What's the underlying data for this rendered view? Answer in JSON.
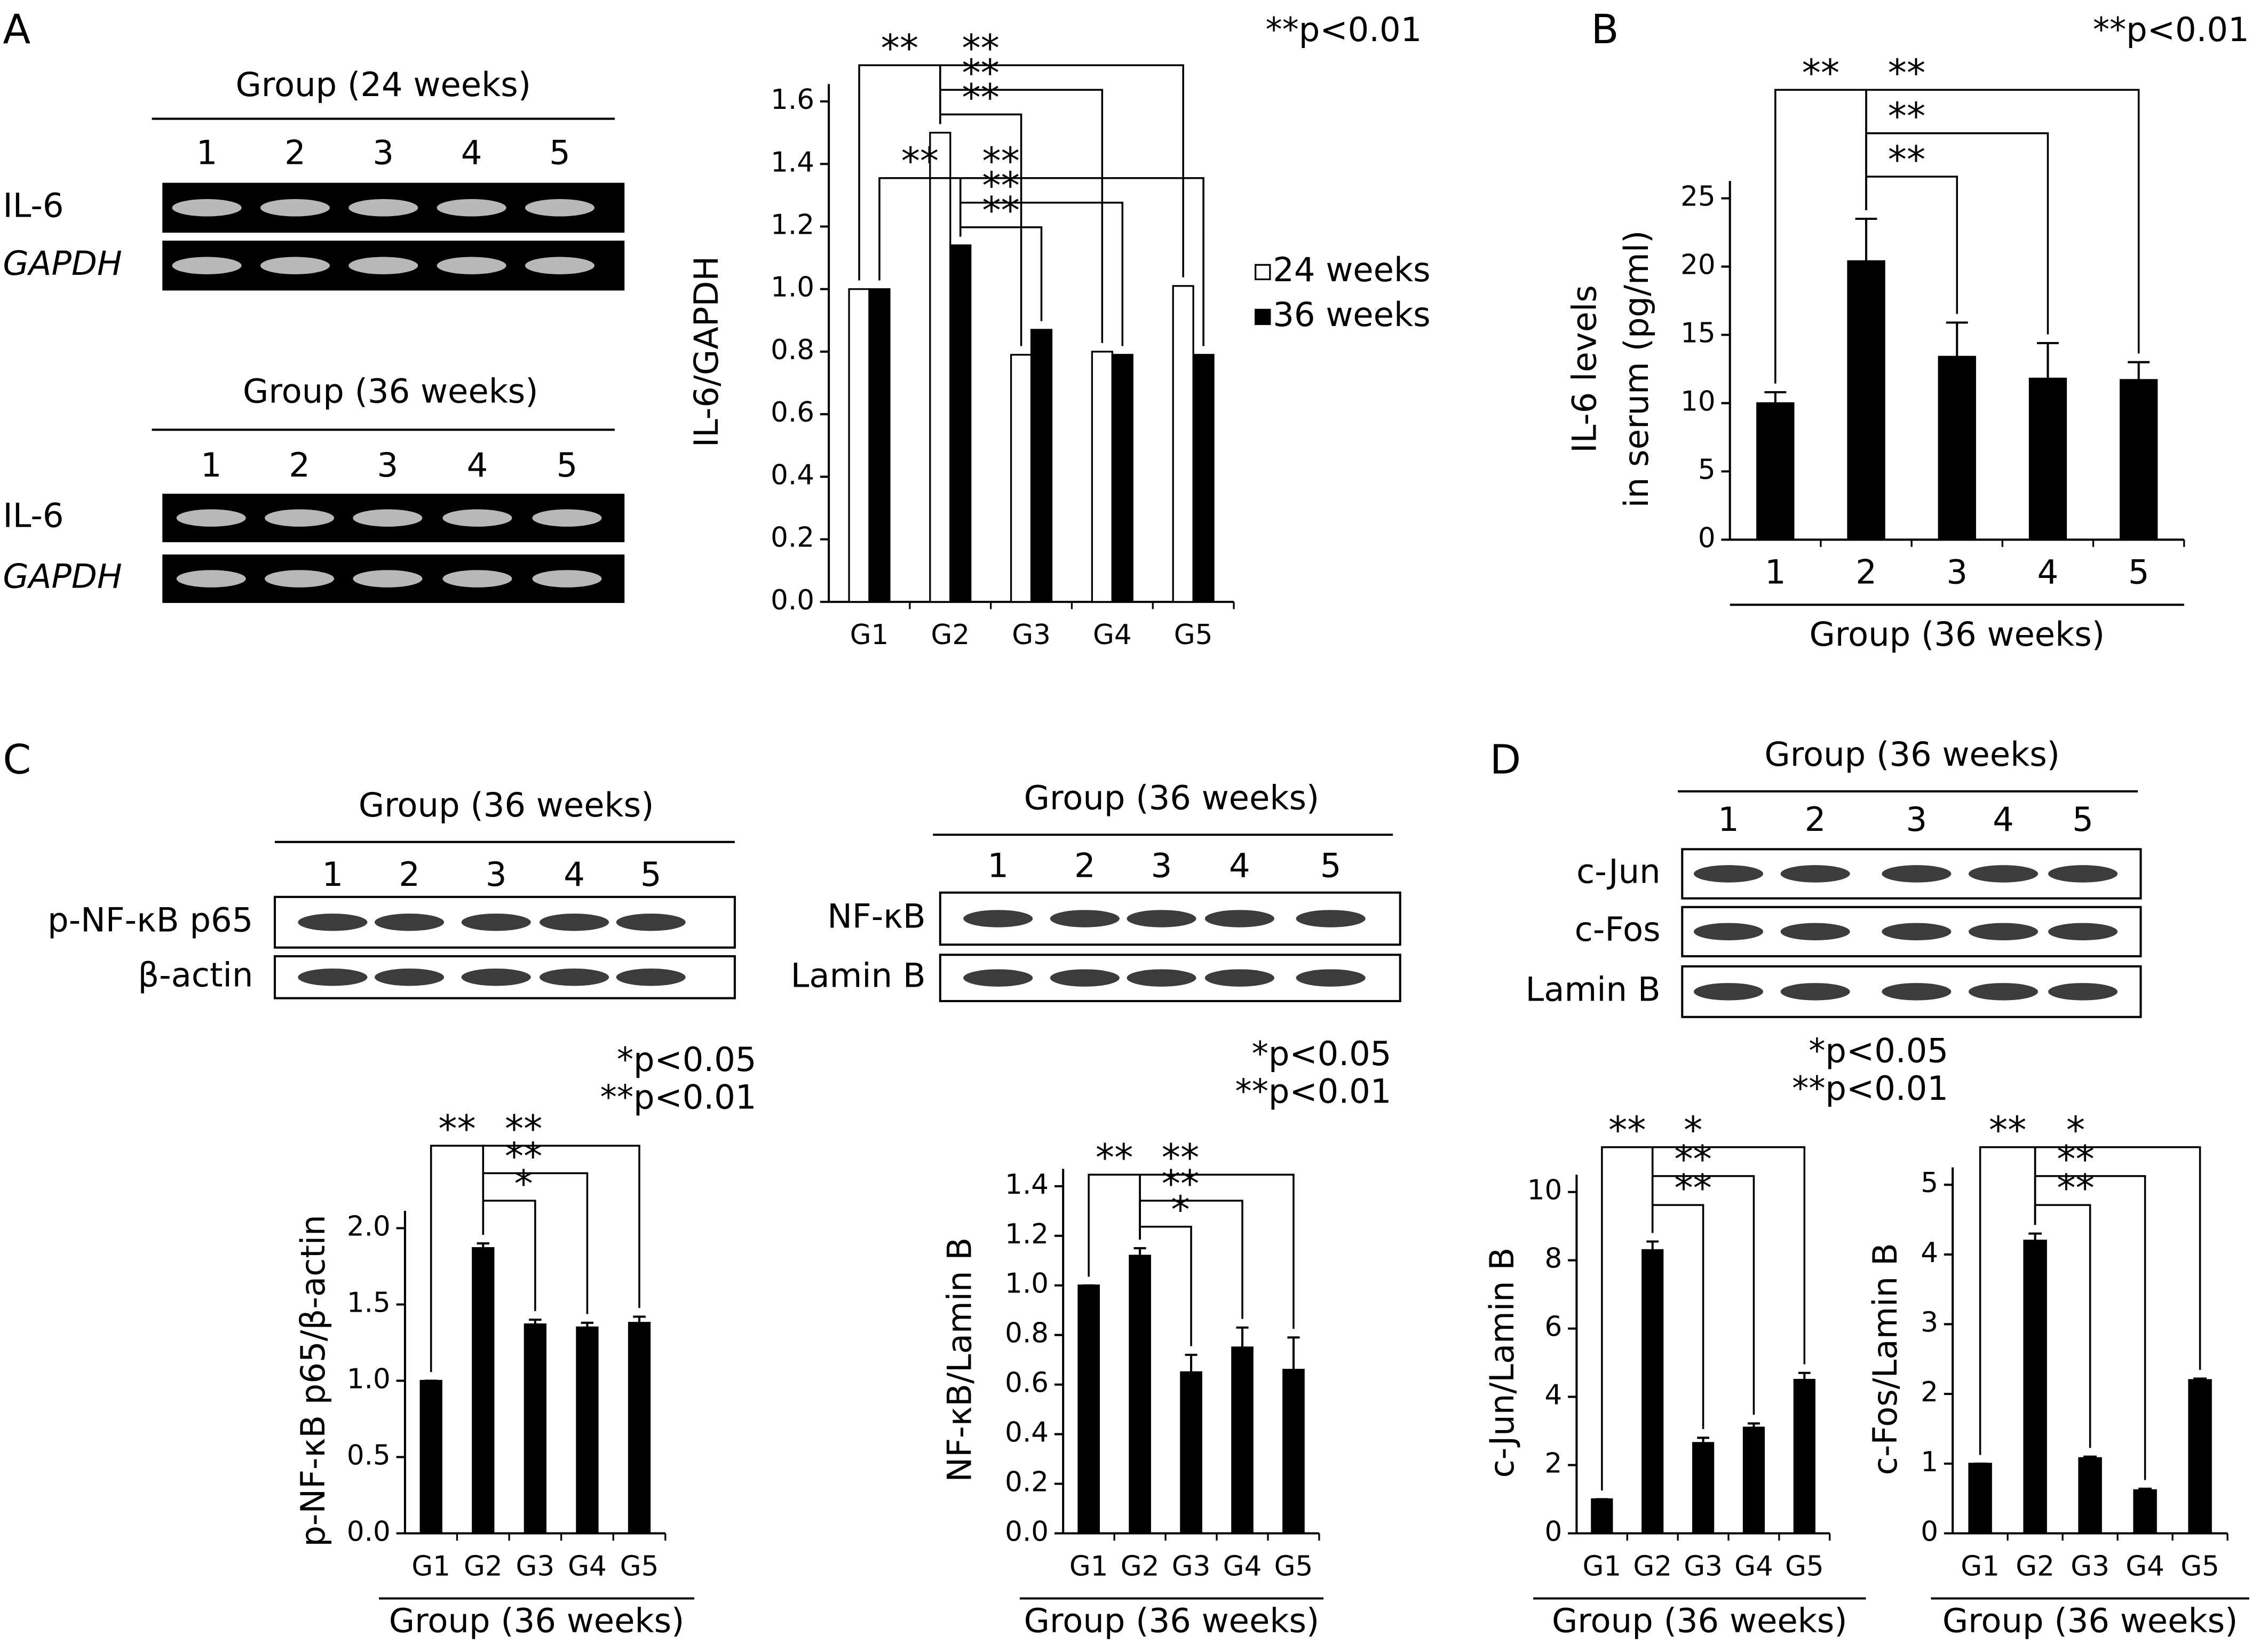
{
  "panels": [
    "A",
    "B",
    "C",
    "D"
  ],
  "blots": [
    {
      "header": "Group (24 weeks)",
      "lanes": [
        "1",
        "2",
        "3",
        "4",
        "5"
      ],
      "rows": [
        "IL-6",
        "GAPDH"
      ]
    },
    {
      "header": "Group (36 weeks)",
      "lanes": [
        "1",
        "2",
        "3",
        "4",
        "5"
      ],
      "rows": [
        "IL-6",
        "GAPDH"
      ]
    },
    {
      "header": "Group (36 weeks)",
      "lanes": [
        "1",
        "2",
        "3",
        "4",
        "5"
      ],
      "rows": [
        "p-NF-κB p65",
        "β-actin"
      ]
    },
    {
      "header": "Group (36 weeks)",
      "lanes": [
        "1",
        "2",
        "3",
        "4",
        "5"
      ],
      "rows": [
        "NF-κB",
        "Lamin B"
      ]
    },
    {
      "header": "Group (36 weeks)",
      "lanes": [
        "1",
        "2",
        "3",
        "4",
        "5"
      ],
      "rows": [
        "c-Jun",
        "c-Fos",
        "Lamin B"
      ]
    }
  ],
  "chart_data": [
    {
      "type": "bar",
      "ylabel": [
        "IL-6/GAPDH"
      ],
      "notes": [
        "**p<0.01"
      ],
      "categories": [
        "G1",
        "G2",
        "G3",
        "G4",
        "G5"
      ],
      "series": [
        {
          "name": "24 weeks",
          "color": "#ffffff",
          "values": [
            1.0,
            1.5,
            0.79,
            0.8,
            1.01
          ]
        },
        {
          "name": "36 weeks",
          "color": "#000000",
          "values": [
            1.0,
            1.14,
            0.87,
            0.79,
            0.79
          ]
        }
      ],
      "ylim": [
        0,
        1.6
      ],
      "yticks": [
        {
          "value": 0,
          "label": "0.0"
        },
        {
          "value": 0.2,
          "label": "0.2"
        },
        {
          "value": 0.4,
          "label": "0.4"
        },
        {
          "value": 0.6,
          "label": "0.6"
        },
        {
          "value": 0.8,
          "label": "0.8"
        },
        {
          "value": 1,
          "label": "1.0"
        },
        {
          "value": 1.2,
          "label": "1.2"
        },
        {
          "value": 1.4,
          "label": "1.4"
        },
        {
          "value": 1.6,
          "label": "1.6"
        }
      ],
      "legend": "right",
      "annotations": [
        {
          "text": "**",
          "between": [
            "G1",
            "G2"
          ],
          "series": "24 weeks"
        },
        {
          "text": "**",
          "between": [
            "G2",
            "G3"
          ],
          "series": "24 weeks"
        },
        {
          "text": "**",
          "between": [
            "G2",
            "G4"
          ],
          "series": "24 weeks"
        },
        {
          "text": "**",
          "between": [
            "G2",
            "G5"
          ],
          "series": "24 weeks"
        },
        {
          "text": "**",
          "between": [
            "G1",
            "G2"
          ],
          "series": "36 weeks"
        },
        {
          "text": "**",
          "between": [
            "G2",
            "G3"
          ],
          "series": "36 weeks"
        },
        {
          "text": "**",
          "between": [
            "G2",
            "G4"
          ],
          "series": "36 weeks"
        },
        {
          "text": "**",
          "between": [
            "G2",
            "G5"
          ],
          "series": "36 weeks"
        }
      ]
    },
    {
      "type": "bar",
      "ylabel": [
        "IL-6 levels",
        "in serum (pg/ml)"
      ],
      "xlabel": "Group (36 weeks)",
      "notes": [
        "**p<0.01"
      ],
      "categories": [
        "1",
        "2",
        "3",
        "4",
        "5"
      ],
      "series": [
        {
          "color": "#000000",
          "values": [
            10,
            20.4,
            13.4,
            11.8,
            11.7
          ],
          "errors": [
            0.8,
            3.1,
            2.5,
            2.6,
            1.3
          ]
        }
      ],
      "ylim": [
        0,
        25
      ],
      "yticks": [
        0,
        5,
        10,
        15,
        20,
        25
      ],
      "annotations": [
        {
          "text": "**",
          "between": [
            "1",
            "2"
          ]
        },
        {
          "text": "**",
          "between": [
            "2",
            "3"
          ]
        },
        {
          "text": "**",
          "between": [
            "2",
            "4"
          ]
        },
        {
          "text": "**",
          "between": [
            "2",
            "5"
          ]
        }
      ]
    },
    {
      "type": "bar",
      "ylabel": [
        "p-NF-κB p65/β-actin"
      ],
      "xlabel": "Group (36 weeks)",
      "notes": [
        "*p<0.05",
        "**p<0.01"
      ],
      "categories": [
        "G1",
        "G2",
        "G3",
        "G4",
        "G5"
      ],
      "series": [
        {
          "color": "#000000",
          "values": [
            1.0,
            1.87,
            1.37,
            1.35,
            1.38
          ],
          "errors": [
            0,
            0.03,
            0.03,
            0.03,
            0.04
          ]
        }
      ],
      "ylim": [
        0,
        2
      ],
      "yticks": [
        {
          "value": 0,
          "label": "0.0"
        },
        {
          "value": 0.5,
          "label": "0.5"
        },
        {
          "value": 1,
          "label": "1.0"
        },
        {
          "value": 1.5,
          "label": "1.5"
        },
        {
          "value": 2,
          "label": "2.0"
        }
      ],
      "annotations": [
        {
          "text": "**",
          "between": [
            "G1",
            "G2"
          ]
        },
        {
          "text": "*",
          "between": [
            "G2",
            "G3"
          ]
        },
        {
          "text": "**",
          "between": [
            "G2",
            "G4"
          ]
        },
        {
          "text": "**",
          "between": [
            "G2",
            "G5"
          ]
        }
      ]
    },
    {
      "type": "bar",
      "ylabel": [
        "NF-κB/Lamin B"
      ],
      "xlabel": "Group (36 weeks)",
      "notes": [
        "*p<0.05",
        "**p<0.01"
      ],
      "categories": [
        "G1",
        "G2",
        "G3",
        "G4",
        "G5"
      ],
      "series": [
        {
          "color": "#000000",
          "values": [
            1.0,
            1.12,
            0.65,
            0.75,
            0.66
          ],
          "errors": [
            0,
            0.03,
            0.07,
            0.08,
            0.13
          ]
        }
      ],
      "ylim": [
        0,
        1.4
      ],
      "yticks": [
        {
          "value": 0,
          "label": "0.0"
        },
        {
          "value": 0.2,
          "label": "0.2"
        },
        {
          "value": 0.4,
          "label": "0.4"
        },
        {
          "value": 0.6,
          "label": "0.6"
        },
        {
          "value": 0.8,
          "label": "0.8"
        },
        {
          "value": 1,
          "label": "1.0"
        },
        {
          "value": 1.2,
          "label": "1.2"
        },
        {
          "value": 1.4,
          "label": "1.4"
        }
      ],
      "annotations": [
        {
          "text": "**",
          "between": [
            "G1",
            "G2"
          ]
        },
        {
          "text": "*",
          "between": [
            "G2",
            "G3"
          ]
        },
        {
          "text": "**",
          "between": [
            "G2",
            "G4"
          ]
        },
        {
          "text": "**",
          "between": [
            "G2",
            "G5"
          ]
        }
      ]
    },
    {
      "type": "bar",
      "ylabel": [
        "c-Jun/Lamin B"
      ],
      "xlabel": "Group (36 weeks)",
      "notes": [
        "*p<0.05",
        "**p<0.01"
      ],
      "categories": [
        "G1",
        "G2",
        "G3",
        "G4",
        "G5"
      ],
      "series": [
        {
          "color": "#000000",
          "values": [
            1.0,
            8.3,
            2.65,
            3.1,
            4.5
          ],
          "errors": [
            0,
            0.25,
            0.15,
            0.12,
            0.2
          ]
        }
      ],
      "ylim": [
        0,
        10
      ],
      "yticks": [
        0,
        2,
        4,
        6,
        8,
        10
      ],
      "annotations": [
        {
          "text": "**",
          "between": [
            "G1",
            "G2"
          ]
        },
        {
          "text": "**",
          "between": [
            "G2",
            "G3"
          ]
        },
        {
          "text": "**",
          "between": [
            "G2",
            "G4"
          ]
        },
        {
          "text": "*",
          "between": [
            "G2",
            "G5"
          ]
        }
      ]
    },
    {
      "type": "bar",
      "ylabel": [
        "c-Fos/Lamin B"
      ],
      "xlabel": "Group (36 weeks)",
      "categories": [
        "G1",
        "G2",
        "G3",
        "G4",
        "G5"
      ],
      "series": [
        {
          "color": "#000000",
          "values": [
            1.0,
            4.2,
            1.08,
            0.62,
            2.2
          ],
          "errors": [
            0,
            0.1,
            0.02,
            0.02,
            0.02
          ]
        }
      ],
      "ylim": [
        0,
        5
      ],
      "yticks": [
        0,
        1,
        2,
        3,
        4,
        5
      ],
      "annotations": [
        {
          "text": "**",
          "between": [
            "G1",
            "G2"
          ]
        },
        {
          "text": "**",
          "between": [
            "G2",
            "G3"
          ]
        },
        {
          "text": "**",
          "between": [
            "G2",
            "G4"
          ]
        },
        {
          "text": "*",
          "between": [
            "G2",
            "G5"
          ]
        }
      ]
    }
  ]
}
